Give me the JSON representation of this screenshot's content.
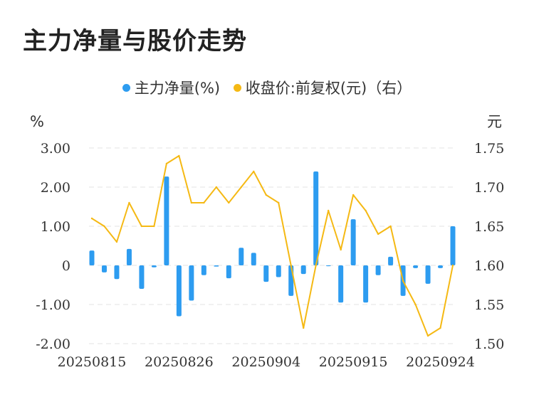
{
  "title": "主力净量与股价走势",
  "legend": [
    {
      "label": "主力净量(%)",
      "color": "#2d9cf0"
    },
    {
      "label": "收盘价:前复权(元)（右）",
      "color": "#f5b914"
    }
  ],
  "chart_data": {
    "type": "bar+line",
    "left_unit": "%",
    "right_unit": "元",
    "left_axis": {
      "min": -2.0,
      "max": 3.0,
      "ticks": [
        "-2.00",
        "-1.00",
        "0",
        "1.00",
        "2.00",
        "3.00"
      ]
    },
    "right_axis": {
      "min": 1.5,
      "max": 1.75,
      "ticks": [
        "1.50",
        "1.55",
        "1.60",
        "1.65",
        "1.70",
        "1.75"
      ]
    },
    "x_tick_labels": [
      "20250815",
      "20250826",
      "20250904",
      "20250915",
      "20250924"
    ],
    "x_tick_indices": [
      0,
      7,
      14,
      21,
      28
    ],
    "grid": "horizontal-dashed",
    "series": [
      {
        "name": "主力净量(%)",
        "type": "bar",
        "color": "#2d9cf0",
        "values": [
          0.38,
          -0.18,
          -0.35,
          0.42,
          -0.6,
          -0.05,
          2.27,
          -1.3,
          -0.9,
          -0.25,
          -0.03,
          -0.33,
          0.45,
          0.32,
          -0.42,
          -0.3,
          -0.78,
          -0.22,
          2.4,
          -0.02,
          -0.95,
          1.18,
          -0.95,
          -0.25,
          0.22,
          -0.78,
          -0.07,
          -0.47,
          -0.07,
          1.0
        ]
      },
      {
        "name": "收盘价:前复权(元)（右）",
        "type": "line",
        "color": "#f5b914",
        "values": [
          1.66,
          1.65,
          1.63,
          1.68,
          1.65,
          1.65,
          1.73,
          1.74,
          1.68,
          1.68,
          1.7,
          1.68,
          1.7,
          1.72,
          1.69,
          1.68,
          1.6,
          1.52,
          1.6,
          1.67,
          1.62,
          1.69,
          1.67,
          1.64,
          1.65,
          1.58,
          1.55,
          1.51,
          1.52,
          1.6
        ]
      }
    ]
  }
}
